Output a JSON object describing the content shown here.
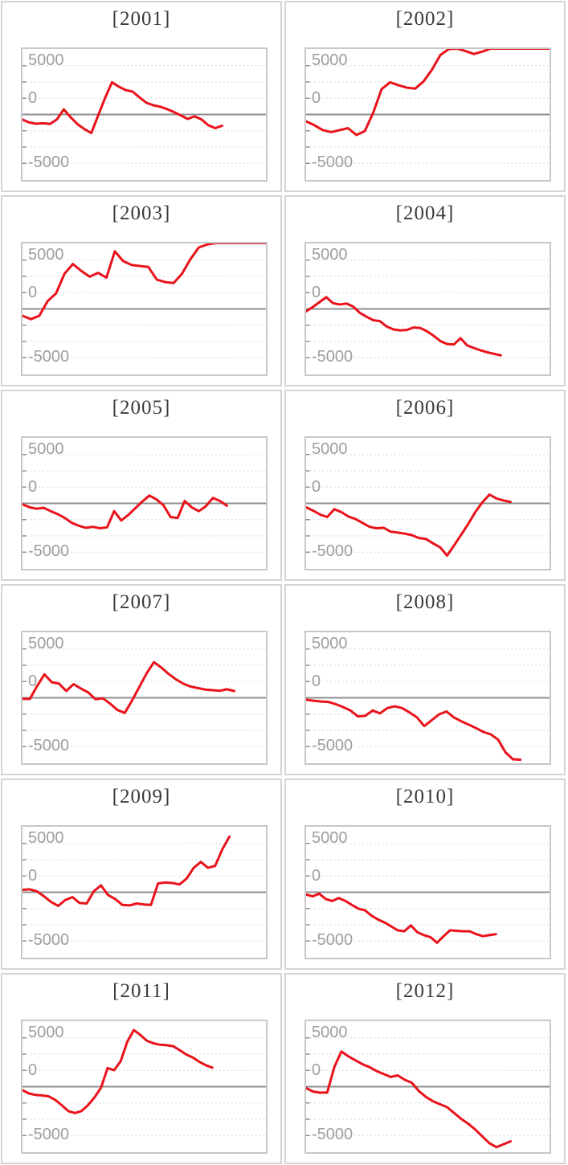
{
  "page": {
    "description": "Small-multiples line chart grid, one panel per year 2001-2012, cumulative value series around zero"
  },
  "colors": {
    "line": "#e8131b",
    "grid_dashed": "#d9d9d9",
    "zero_line": "#8f8f8f",
    "tick_mark": "#8c8c8c",
    "plot_border": "#c8c8c8",
    "panel_border": "#d5d5d5",
    "title_text": "#3a3a3a",
    "axis_label_text": "#9e9e9e",
    "background": "#ffffff"
  },
  "y_axis": {
    "tick_labels": [
      "5000",
      "0",
      "-5000"
    ],
    "tick_values": [
      5000,
      0,
      -5000
    ],
    "gridline_values": [
      5000,
      3333,
      1667,
      0,
      -1667,
      -3333,
      -5000
    ],
    "ylim": [
      -6710,
      6710
    ]
  },
  "chart_data": [
    {
      "type": "line",
      "title": "[2001]",
      "x_end": 0.82,
      "values": [
        -530,
        -820,
        -950,
        -900,
        -960,
        -500,
        530,
        -300,
        -1000,
        -1500,
        -1900,
        -100,
        1700,
        3300,
        2850,
        2500,
        2350,
        1750,
        1200,
        950,
        800,
        550,
        250,
        -100,
        -450,
        -200,
        -500,
        -1100,
        -1400,
        -1150
      ]
    },
    {
      "type": "line",
      "title": "[2002]",
      "x_end": 1.0,
      "values": [
        -700,
        -1100,
        -1600,
        -1800,
        -1600,
        -1400,
        -2100,
        -1700,
        200,
        2600,
        3300,
        3000,
        2750,
        2650,
        3400,
        4600,
        6100,
        6700,
        6750,
        6500,
        6200,
        6450,
        6750,
        6750,
        6750,
        6750,
        6750,
        6750,
        6750,
        6750
      ]
    },
    {
      "type": "line",
      "title": "[2003]",
      "x_end": 1.0,
      "values": [
        -700,
        -1050,
        -700,
        800,
        1600,
        3600,
        4600,
        3900,
        3300,
        3700,
        3200,
        5900,
        4900,
        4500,
        4400,
        4300,
        3000,
        2750,
        2650,
        3600,
        5100,
        6300,
        6600,
        6750,
        6750,
        6750,
        6750,
        6750,
        6750,
        6750
      ]
    },
    {
      "type": "line",
      "title": "[2004]",
      "x_end": 0.8,
      "values": [
        -250,
        200,
        700,
        1200,
        600,
        450,
        550,
        250,
        -400,
        -800,
        -1150,
        -1250,
        -1800,
        -2100,
        -2200,
        -2150,
        -1900,
        -1950,
        -2300,
        -2750,
        -3300,
        -3600,
        -3650,
        -3000,
        -3750,
        -4000,
        -4250,
        -4450,
        -4600,
        -4760
      ]
    },
    {
      "type": "line",
      "title": "[2005]",
      "x_end": 0.84,
      "values": [
        -100,
        -400,
        -550,
        -450,
        -800,
        -1100,
        -1500,
        -2000,
        -2300,
        -2500,
        -2400,
        -2550,
        -2450,
        -800,
        -1750,
        -1200,
        -500,
        200,
        800,
        400,
        -200,
        -1400,
        -1500,
        250,
        -400,
        -800,
        -300,
        550,
        250,
        -250
      ]
    },
    {
      "type": "line",
      "title": "[2006]",
      "x_end": 0.84,
      "values": [
        -400,
        -750,
        -1150,
        -1400,
        -600,
        -900,
        -1350,
        -1600,
        -2000,
        -2400,
        -2550,
        -2500,
        -2900,
        -3000,
        -3100,
        -3250,
        -3550,
        -3650,
        -4100,
        -4500,
        -5350,
        -4300,
        -3200,
        -2100,
        -900,
        100,
        900,
        500,
        300,
        150
      ]
    },
    {
      "type": "line",
      "title": "[2007]",
      "x_end": 0.87,
      "values": [
        -100,
        -120,
        1200,
        2400,
        1600,
        1450,
        700,
        1400,
        950,
        550,
        -150,
        -50,
        -600,
        -1250,
        -1550,
        -300,
        1100,
        2500,
        3650,
        3100,
        2450,
        1900,
        1450,
        1150,
        1000,
        850,
        780,
        720,
        870,
        700
      ]
    },
    {
      "type": "line",
      "title": "[2008]",
      "x_end": 0.88,
      "values": [
        -200,
        -300,
        -380,
        -420,
        -650,
        -950,
        -1300,
        -1900,
        -1850,
        -1300,
        -1600,
        -1050,
        -870,
        -1050,
        -1500,
        -2000,
        -2900,
        -2300,
        -1700,
        -1400,
        -2000,
        -2400,
        -2750,
        -3100,
        -3500,
        -3750,
        -4300,
        -5600,
        -6300,
        -6350
      ]
    },
    {
      "type": "line",
      "title": "[2009]",
      "x_end": 0.85,
      "values": [
        250,
        300,
        100,
        -400,
        -1000,
        -1400,
        -800,
        -500,
        -1100,
        -1150,
        100,
        700,
        -300,
        -700,
        -1300,
        -1350,
        -1150,
        -1250,
        -1300,
        900,
        1000,
        950,
        800,
        1400,
        2500,
        3100,
        2500,
        2700,
        4400,
        5700
      ]
    },
    {
      "type": "line",
      "title": "[2010]",
      "x_end": 0.78,
      "values": [
        -250,
        -420,
        -150,
        -700,
        -900,
        -600,
        -900,
        -1300,
        -1700,
        -1850,
        -2400,
        -2800,
        -3100,
        -3500,
        -3900,
        -4000,
        -3400,
        -4100,
        -4400,
        -4600,
        -5180,
        -4500,
        -3900,
        -3950,
        -4000,
        -4000,
        -4300,
        -4500,
        -4400,
        -4300
      ]
    },
    {
      "type": "line",
      "title": "[2011]",
      "x_end": 0.78,
      "values": [
        -350,
        -700,
        -850,
        -900,
        -1000,
        -1350,
        -1900,
        -2500,
        -2700,
        -2500,
        -1900,
        -1100,
        -100,
        1900,
        1700,
        2600,
        4600,
        5800,
        5300,
        4700,
        4450,
        4300,
        4250,
        4150,
        3750,
        3300,
        3000,
        2550,
        2200,
        1950
      ]
    },
    {
      "type": "line",
      "title": "[2012]",
      "x_end": 0.84,
      "values": [
        -150,
        -500,
        -620,
        -600,
        2000,
        3600,
        3100,
        2700,
        2300,
        2000,
        1600,
        1300,
        1000,
        1150,
        700,
        400,
        -450,
        -1050,
        -1500,
        -1800,
        -2100,
        -2700,
        -3300,
        -3800,
        -4400,
        -5100,
        -5800,
        -6200,
        -5900,
        -5600
      ]
    }
  ]
}
